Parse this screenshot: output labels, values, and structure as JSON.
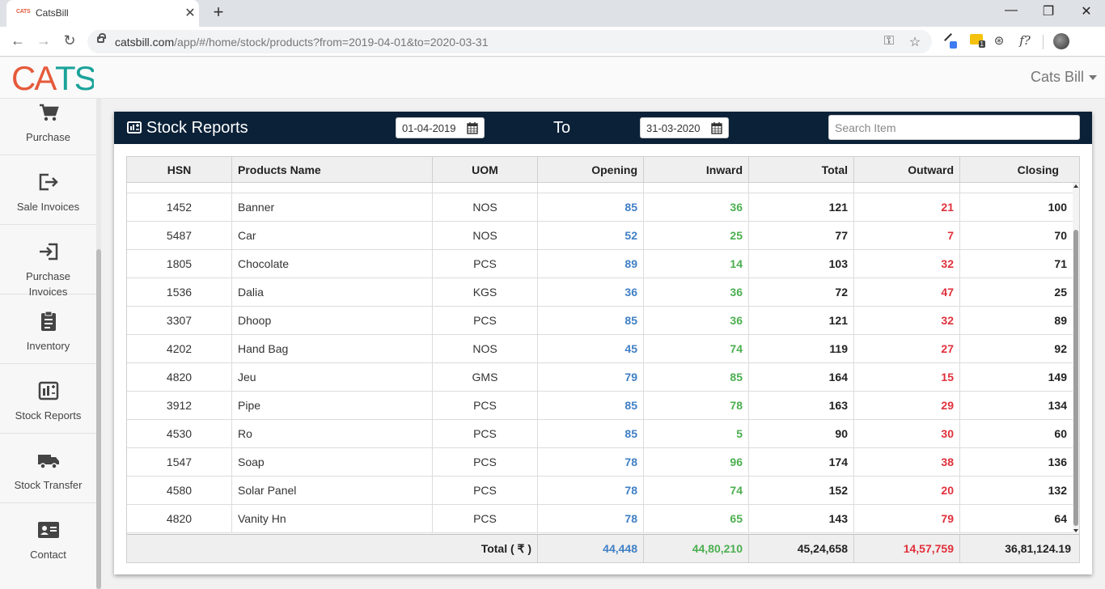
{
  "browser": {
    "tab_title": "CatsBill",
    "tab_favicon_text": "CATS",
    "url_host": "catsbill.com",
    "url_path": "/app/#/home/stock/products?from=2019-04-01&to=2020-03-31"
  },
  "app": {
    "logo_text": "CATS",
    "user_name": "Cats Bill",
    "colors": {
      "header": "#0b2138",
      "blue": "#3f7fc5",
      "green": "#4caf50",
      "red": "#e0303b",
      "logo_orange": "#e55a3b",
      "logo_teal": "#1aa39a"
    }
  },
  "sidebar": {
    "items": [
      {
        "label": "Purchase",
        "icon": "cart-icon"
      },
      {
        "label": "Sale Invoices",
        "icon": "sign-out-icon"
      },
      {
        "label": "Purchase\nInvoices",
        "icon": "sign-in-icon"
      },
      {
        "label": "Inventory",
        "icon": "clipboard-icon"
      },
      {
        "label": "Stock Reports",
        "icon": "stock-report-icon"
      },
      {
        "label": "Stock Transfer",
        "icon": "truck-icon"
      },
      {
        "label": "Contact",
        "icon": "contact-card-icon"
      }
    ]
  },
  "report": {
    "title": "Stock Reports",
    "from_date": "01-04-2019",
    "to_label": "To",
    "to_date": "31-03-2020",
    "search_placeholder": "Search Item",
    "columns": [
      "HSN",
      "Products Name",
      "UOM",
      "Opening",
      "Inward",
      "Total",
      "Outward",
      "Closing"
    ],
    "rows": [
      {
        "hsn": "1452",
        "name": "Banner",
        "uom": "NOS",
        "opening": "85",
        "inward": "36",
        "total": "121",
        "outward": "21",
        "closing": "100"
      },
      {
        "hsn": "5487",
        "name": "Car",
        "uom": "NOS",
        "opening": "52",
        "inward": "25",
        "total": "77",
        "outward": "7",
        "closing": "70"
      },
      {
        "hsn": "1805",
        "name": "Chocolate",
        "uom": "PCS",
        "opening": "89",
        "inward": "14",
        "total": "103",
        "outward": "32",
        "closing": "71"
      },
      {
        "hsn": "1536",
        "name": "Dalia",
        "uom": "KGS",
        "opening": "36",
        "inward": "36",
        "total": "72",
        "outward": "47",
        "closing": "25"
      },
      {
        "hsn": "3307",
        "name": "Dhoop",
        "uom": "PCS",
        "opening": "85",
        "inward": "36",
        "total": "121",
        "outward": "32",
        "closing": "89"
      },
      {
        "hsn": "4202",
        "name": "Hand Bag",
        "uom": "NOS",
        "opening": "45",
        "inward": "74",
        "total": "119",
        "outward": "27",
        "closing": "92"
      },
      {
        "hsn": "4820",
        "name": "Jeu",
        "uom": "GMS",
        "opening": "79",
        "inward": "85",
        "total": "164",
        "outward": "15",
        "closing": "149"
      },
      {
        "hsn": "3912",
        "name": "Pipe",
        "uom": "PCS",
        "opening": "85",
        "inward": "78",
        "total": "163",
        "outward": "29",
        "closing": "134"
      },
      {
        "hsn": "4530",
        "name": "Ro",
        "uom": "PCS",
        "opening": "85",
        "inward": "5",
        "total": "90",
        "outward": "30",
        "closing": "60"
      },
      {
        "hsn": "1547",
        "name": "Soap",
        "uom": "PCS",
        "opening": "78",
        "inward": "96",
        "total": "174",
        "outward": "38",
        "closing": "136"
      },
      {
        "hsn": "4580",
        "name": "Solar Panel",
        "uom": "PCS",
        "opening": "78",
        "inward": "74",
        "total": "152",
        "outward": "20",
        "closing": "132"
      },
      {
        "hsn": "4820",
        "name": "Vanity Hn",
        "uom": "PCS",
        "opening": "78",
        "inward": "65",
        "total": "143",
        "outward": "79",
        "closing": "64"
      }
    ],
    "totals": {
      "label": "Total ( ₹ )",
      "opening": "44,448",
      "inward": "44,80,210",
      "total": "45,24,658",
      "outward": "14,57,759",
      "closing": "36,81,124.19"
    }
  }
}
